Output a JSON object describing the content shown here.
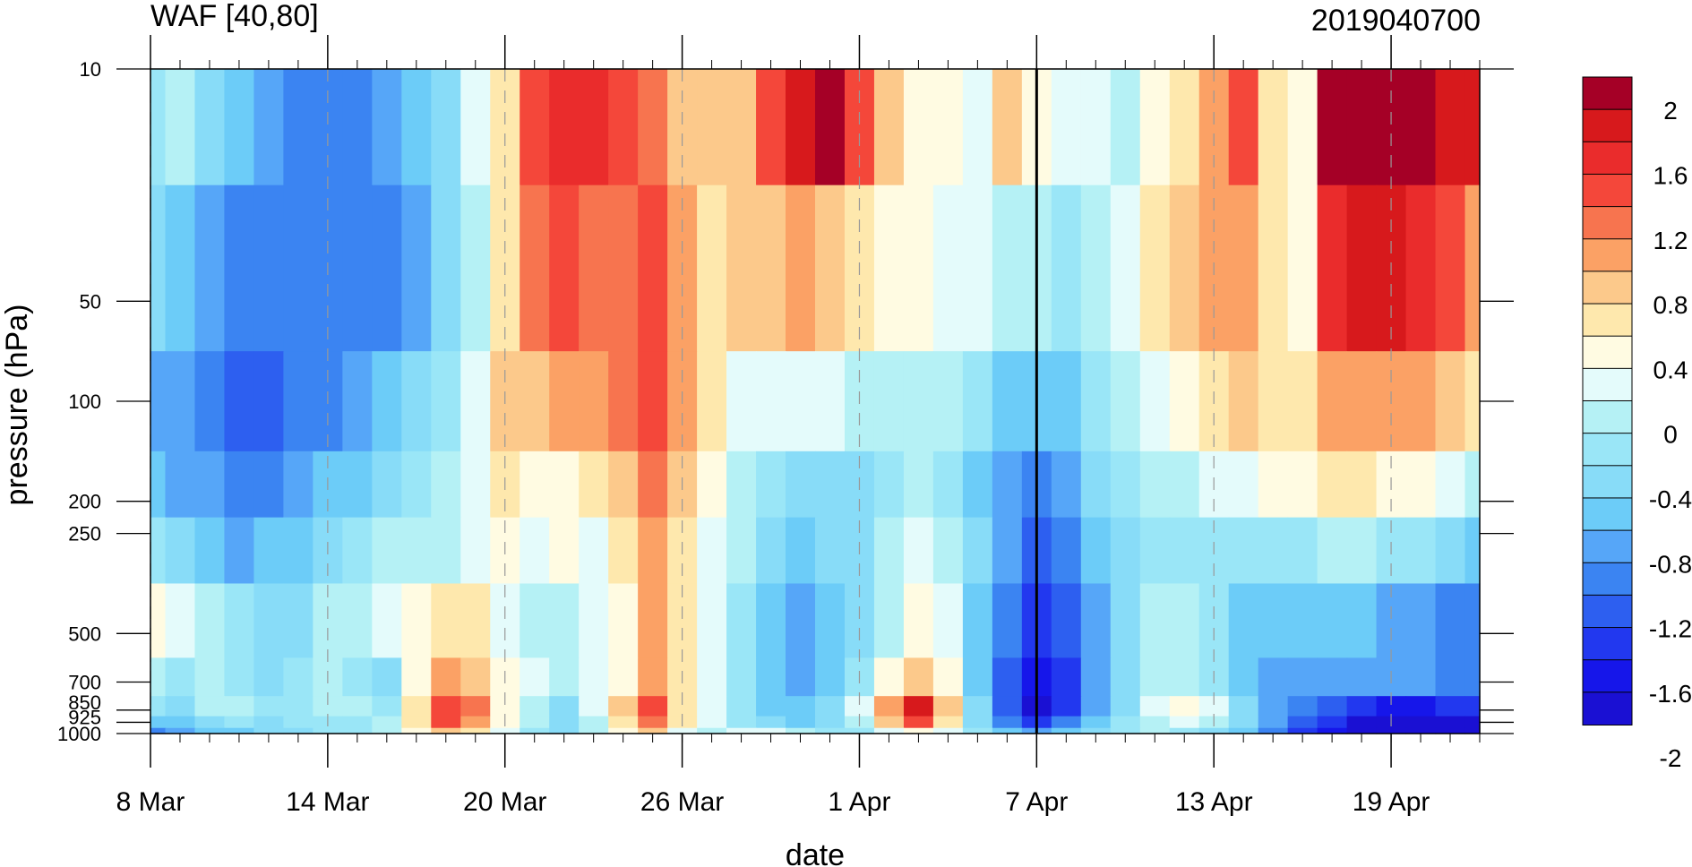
{
  "chart_data": {
    "type": "heatmap",
    "title_left": "WAF [40,80]",
    "title_right": "2019040700",
    "xlabel": "date",
    "ylabel": "pressure (hPa)",
    "x_ticks": [
      "8 Mar",
      "14 Mar",
      "20 Mar",
      "26 Mar",
      "1 Apr",
      "7 Apr",
      "13 Apr",
      "19 Apr"
    ],
    "y_ticks": [
      "10",
      "50",
      "100",
      "200",
      "250",
      "500",
      "700",
      "850",
      "925",
      "1000"
    ],
    "y_levels": [
      10,
      50,
      100,
      200,
      250,
      500,
      700,
      850,
      925,
      1000
    ],
    "y_scale": "log",
    "colorbar_labels": [
      "2",
      "1.6",
      "1.2",
      "0.8",
      "0.4",
      "0",
      "-0.4",
      "-0.8",
      "-1.2",
      "-1.6",
      "-2"
    ],
    "colorbar_colors": [
      "#a50026",
      "#d7191c",
      "#ea2c2c",
      "#f4473a",
      "#f7744f",
      "#fba165",
      "#fcc98b",
      "#fee8ad",
      "#fffbe2",
      "#e4fbfb",
      "#b5f1f5",
      "#9ae6f7",
      "#88dcf8",
      "#6cccf8",
      "#56a6f8",
      "#3b84f2",
      "#2d5ff0",
      "#2238ef",
      "#1616ea",
      "#1a10d3"
    ],
    "marker_date": "7 Apr",
    "days": [
      "8 Mar",
      "9 Mar",
      "10 Mar",
      "11 Mar",
      "12 Mar",
      "13 Mar",
      "14 Mar",
      "15 Mar",
      "16 Mar",
      "17 Mar",
      "18 Mar",
      "19 Mar",
      "20 Mar",
      "21 Mar",
      "22 Mar",
      "23 Mar",
      "24 Mar",
      "25 Mar",
      "26 Mar",
      "27 Mar",
      "28 Mar",
      "29 Mar",
      "30 Mar",
      "31 Mar",
      "1 Apr",
      "2 Apr",
      "3 Apr",
      "4 Apr",
      "5 Apr",
      "6 Apr",
      "7 Apr",
      "8 Apr",
      "9 Apr",
      "10 Apr",
      "11 Apr",
      "12 Apr",
      "13 Apr",
      "14 Apr",
      "15 Apr",
      "16 Apr",
      "17 Apr",
      "18 Apr",
      "19 Apr",
      "20 Apr",
      "21 Apr",
      "22 Apr"
    ],
    "values": [
      [
        -0.1,
        0.1,
        -0.2,
        -0.4,
        -0.6,
        -0.8,
        -0.8,
        -0.8,
        -0.7,
        -0.5,
        -0.3,
        0.3,
        0.8,
        1.5,
        1.7,
        1.7,
        1.5,
        1.3,
        1.0,
        0.9,
        1.0,
        1.5,
        2.0,
        2.1,
        1.6,
        0.9,
        0.6,
        0.5,
        0.3,
        0.9,
        0.5,
        0.4,
        0.3,
        0.1,
        0.5,
        0.7,
        1.2,
        1.6,
        0.8,
        0.5,
        2.1,
        2.2,
        2.2,
        2.1,
        2.0,
        1.9
      ],
      [
        -0.3,
        -0.5,
        -0.7,
        -0.8,
        -0.9,
        -0.9,
        -0.9,
        -0.9,
        -0.8,
        -0.6,
        -0.3,
        0.2,
        0.8,
        1.3,
        1.5,
        1.4,
        1.3,
        1.5,
        1.2,
        0.8,
        0.9,
        1.0,
        1.2,
        1.0,
        0.8,
        0.6,
        0.5,
        0.4,
        0.3,
        0.2,
        0.1,
        0.0,
        0.1,
        0.3,
        0.8,
        1.0,
        1.2,
        1.1,
        0.8,
        0.6,
        1.8,
        2.0,
        2.0,
        1.8,
        1.6,
        1.2
      ],
      [
        -0.6,
        -0.7,
        -0.9,
        -1.0,
        -1.0,
        -0.9,
        -0.8,
        -0.6,
        -0.5,
        -0.3,
        0.0,
        0.4,
        0.9,
        1.0,
        1.1,
        1.2,
        1.4,
        1.6,
        1.1,
        0.7,
        0.4,
        0.3,
        0.4,
        0.4,
        0.2,
        0.1,
        0.1,
        0.1,
        -0.1,
        -0.4,
        -0.5,
        -0.4,
        -0.1,
        0.2,
        0.4,
        0.6,
        0.8,
        0.9,
        0.8,
        0.8,
        1.1,
        1.2,
        1.2,
        1.1,
        1.0,
        0.7
      ],
      [
        -0.5,
        -0.6,
        -0.7,
        -0.8,
        -0.8,
        -0.7,
        -0.5,
        -0.4,
        -0.2,
        0.0,
        0.2,
        0.4,
        0.7,
        0.6,
        0.5,
        0.8,
        1.0,
        1.3,
        0.9,
        0.5,
        0.2,
        -0.1,
        -0.2,
        -0.3,
        -0.3,
        -0.1,
        0.1,
        0.0,
        -0.4,
        -0.6,
        -0.8,
        -0.7,
        -0.3,
        0.0,
        0.1,
        0.2,
        0.3,
        0.4,
        0.5,
        0.6,
        0.7,
        0.7,
        0.6,
        0.5,
        0.4,
        0.2
      ],
      [
        -0.1,
        -0.3,
        -0.5,
        -0.6,
        -0.5,
        -0.4,
        -0.2,
        0.0,
        0.1,
        0.2,
        0.2,
        0.3,
        0.5,
        0.3,
        0.6,
        0.3,
        0.8,
        1.1,
        0.8,
        0.4,
        0.1,
        -0.3,
        -0.4,
        -0.3,
        -0.2,
        0.1,
        0.4,
        0.2,
        -0.3,
        -0.7,
        -1.0,
        -0.9,
        -0.5,
        -0.2,
        0.0,
        0.0,
        0.0,
        -0.1,
        -0.1,
        0.0,
        0.1,
        0.1,
        0.0,
        -0.1,
        -0.2,
        -0.4
      ],
      [
        0.5,
        0.3,
        0.2,
        -0.1,
        -0.3,
        -0.2,
        0.1,
        0.2,
        0.4,
        0.6,
        0.8,
        0.7,
        0.3,
        0.1,
        0.2,
        0.3,
        0.6,
        1.1,
        0.7,
        0.3,
        0.0,
        -0.4,
        -0.6,
        -0.5,
        -0.2,
        0.2,
        0.5,
        0.3,
        -0.4,
        -0.9,
        -1.3,
        -1.1,
        -0.6,
        -0.3,
        0.1,
        0.1,
        -0.1,
        -0.4,
        -0.5,
        -0.5,
        -0.5,
        -0.5,
        -0.6,
        -0.7,
        -0.8,
        -0.8
      ],
      [
        0.2,
        0.0,
        0.2,
        -0.1,
        -0.3,
        -0.1,
        0.1,
        0.0,
        -0.2,
        0.6,
        1.2,
        1.0,
        0.5,
        0.3,
        0.2,
        0.4,
        0.6,
        1.2,
        0.8,
        0.3,
        -0.1,
        -0.5,
        -0.7,
        -0.5,
        0.0,
        0.5,
        0.9,
        0.5,
        -0.4,
        -1.0,
        -1.4,
        -1.2,
        -0.6,
        -0.2,
        0.2,
        0.2,
        -0.1,
        -0.4,
        -0.6,
        -0.6,
        -0.6,
        -0.6,
        -0.7,
        -0.7,
        -0.8,
        -0.8
      ],
      [
        -0.1,
        -0.2,
        0.1,
        0.2,
        -0.1,
        0.0,
        0.1,
        0.1,
        0.0,
        0.8,
        1.6,
        1.3,
        0.6,
        0.2,
        -0.2,
        0.3,
        0.9,
        1.5,
        0.8,
        0.3,
        -0.1,
        -0.4,
        -0.5,
        -0.3,
        0.3,
        1.1,
        1.9,
        1.0,
        -0.3,
        -1.0,
        -1.7,
        -1.3,
        -0.6,
        -0.2,
        0.3,
        0.6,
        0.3,
        -0.3,
        -0.7,
        -0.9,
        -1.1,
        -1.3,
        -1.4,
        -1.4,
        -1.3,
        -1.3
      ],
      [
        -0.5,
        -0.4,
        -0.2,
        -0.1,
        -0.2,
        -0.1,
        0.0,
        0.0,
        0.2,
        0.8,
        1.5,
        1.2,
        0.6,
        0.1,
        -0.3,
        0.2,
        0.8,
        1.4,
        0.7,
        0.3,
        0.0,
        -0.2,
        -0.4,
        -0.3,
        0.2,
        0.9,
        1.6,
        0.8,
        -0.2,
        -0.8,
        -1.2,
        -0.9,
        -0.5,
        -0.1,
        0.2,
        0.3,
        0.1,
        -0.2,
        -0.6,
        -1.0,
        -1.3,
        -1.6,
        -1.8,
        -1.8,
        -1.7,
        -1.7
      ],
      [
        -0.9,
        -0.7,
        -0.5,
        -0.4,
        -0.3,
        -0.2,
        -0.1,
        0.0,
        0.2,
        0.6,
        0.9,
        0.7,
        0.4,
        0.0,
        -0.2,
        0.1,
        0.5,
        0.9,
        0.4,
        0.2,
        0.3,
        0.4,
        0.2,
        -0.1,
        0.0,
        0.4,
        0.6,
        0.3,
        -0.1,
        -0.4,
        -0.6,
        -0.5,
        -0.3,
        0.0,
        0.1,
        -0.1,
        -0.2,
        -0.4,
        -0.8,
        -1.2,
        -1.5,
        -1.8,
        -2.0,
        -2.0,
        -2.0,
        -1.9
      ]
    ]
  }
}
